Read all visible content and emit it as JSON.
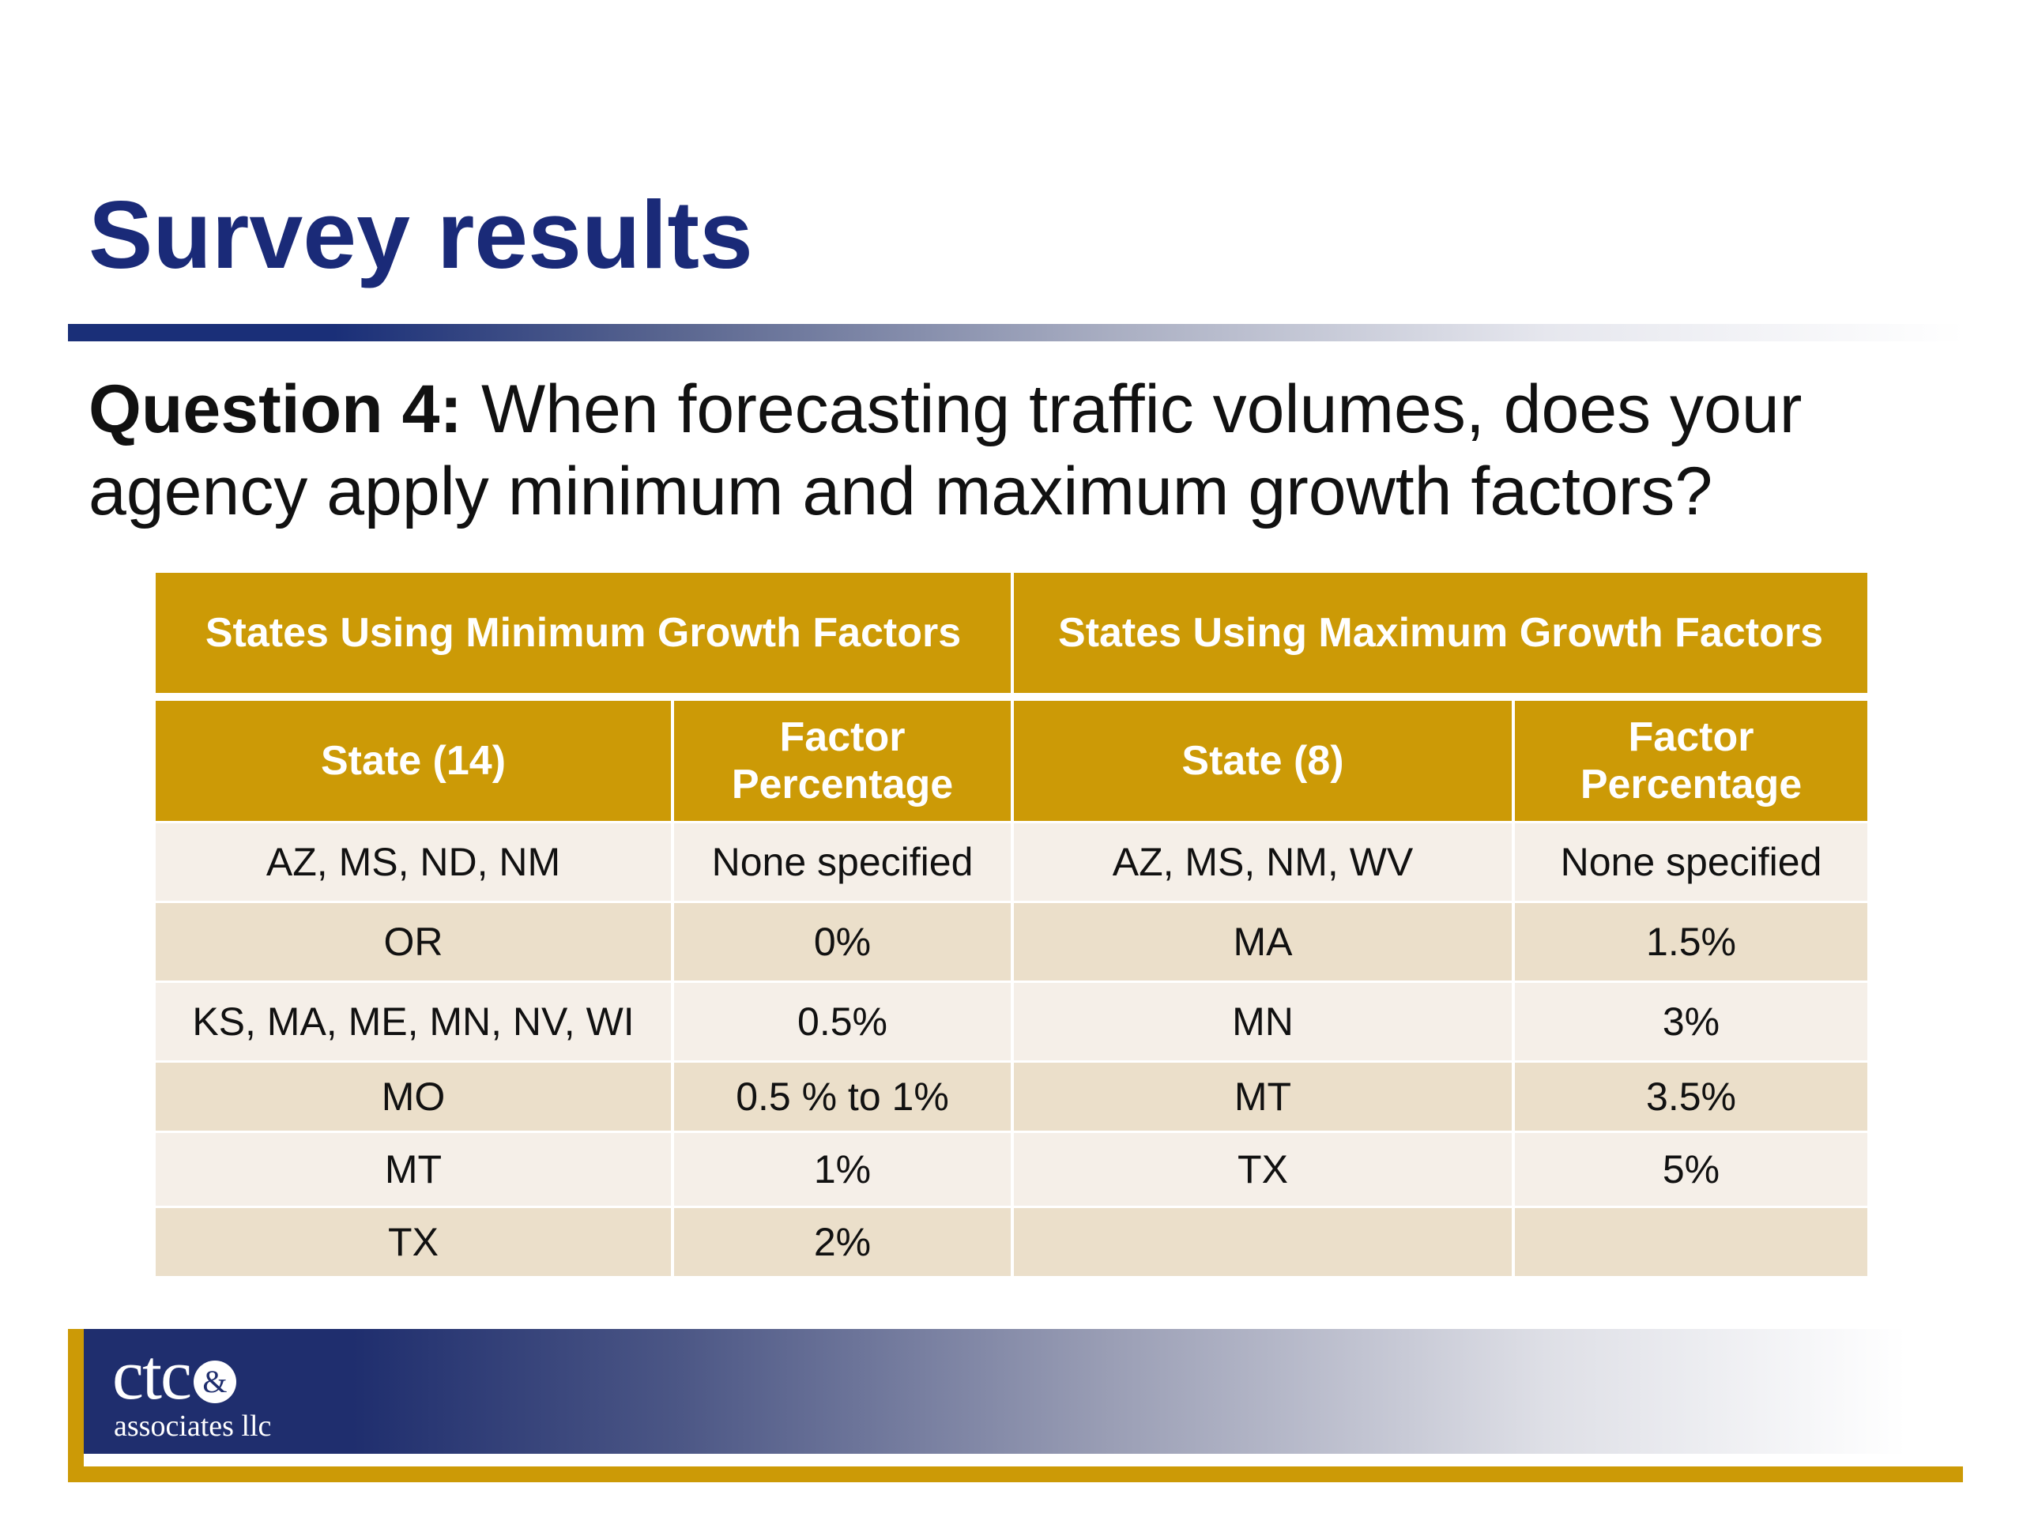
{
  "slide": {
    "title": "Survey results",
    "question_label": "Question 4:",
    "question_text": " When forecasting traffic volumes, does your agency apply minimum and maximum growth factors?"
  },
  "table": {
    "group_headers": [
      "States Using Minimum Growth Factors",
      "States Using Maximum Growth Factors"
    ],
    "sub_headers": [
      "State (14)",
      "Factor Percentage",
      "State (8)",
      "Factor Percentage"
    ],
    "rows": [
      [
        "AZ, MS, ND, NM",
        "None specified",
        "AZ, MS, NM, WV",
        "None specified"
      ],
      [
        "OR",
        "0%",
        "MA",
        "1.5%"
      ],
      [
        "KS, MA, ME, MN, NV, WI",
        "0.5%",
        "MN",
        "3%"
      ],
      [
        "MO",
        "0.5 % to 1%",
        "MT",
        "3.5%"
      ],
      [
        "MT",
        "1%",
        "TX",
        "5%"
      ],
      [
        "TX",
        "2%",
        "",
        ""
      ]
    ]
  },
  "logo": {
    "main": "ctc",
    "amp": "&",
    "sub": "associates llc"
  },
  "colors": {
    "title": "#1a2a78",
    "header_gold": "#cc9a06",
    "row_light": "#f5efe8",
    "row_dark": "#ebdfca",
    "navy": "#1f2e6e"
  }
}
